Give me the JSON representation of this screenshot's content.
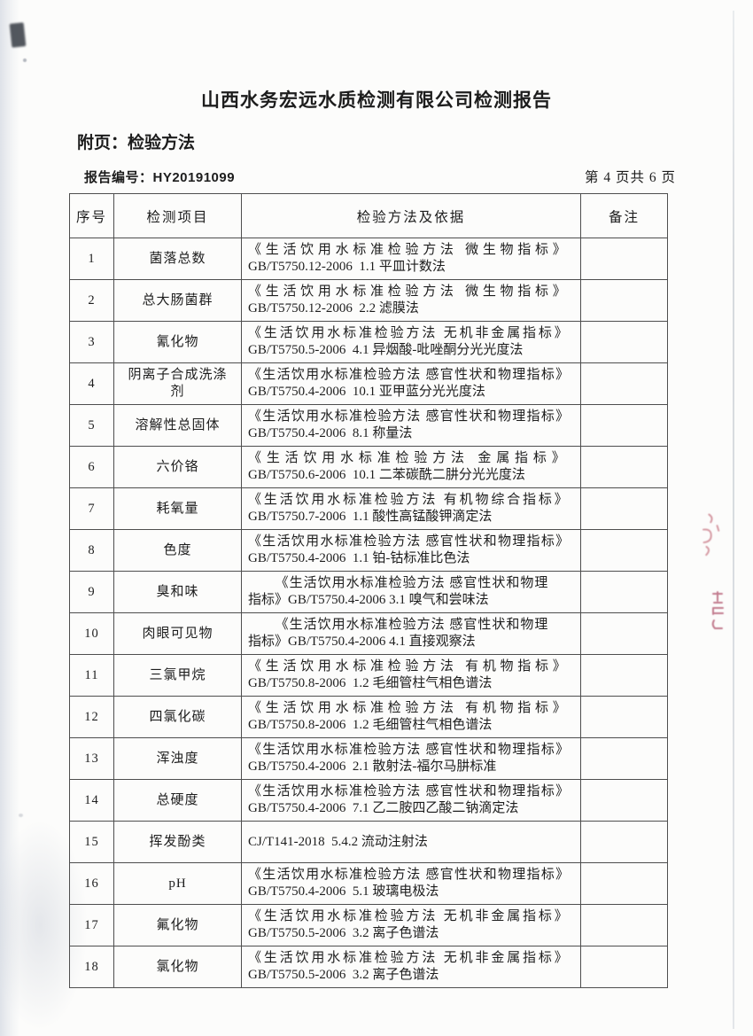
{
  "page": {
    "title": "山西水务宏远水质检测有限公司检测报告",
    "subtitle": "附页：检验方法",
    "report_no": "报告编号：HY20191099",
    "page_indicator": "第 4 页共 6 页"
  },
  "colors": {
    "paper": "#fcfcfb",
    "ink": "#1d1d1d",
    "table_border": "#4e4e4e",
    "stamp": "#b5485a"
  },
  "table": {
    "headers": [
      "序号",
      "检测项目",
      "检验方法及依据",
      "备注"
    ],
    "rows": [
      {
        "num": "1",
        "item": "菌落总数",
        "method_lines": [
          "《生活饮用水标准检验方法 微生物指标》",
          "GB/T5750.12-2006  1.1 平皿计数法"
        ],
        "remark": ""
      },
      {
        "num": "2",
        "item": "总大肠菌群",
        "method_lines": [
          "《生活饮用水标准检验方法 微生物指标》",
          "GB/T5750.12-2006  2.2 滤膜法"
        ],
        "remark": ""
      },
      {
        "num": "3",
        "item": "氰化物",
        "method_lines": [
          "《生活饮用水标准检验方法 无机非金属指标》",
          "GB/T5750.5-2006  4.1 异烟酸-吡唑酮分光光度法"
        ],
        "remark": ""
      },
      {
        "num": "4",
        "item": "阴离子合成洗涤\n剂",
        "method_lines": [
          "《生活饮用水标准检验方法 感官性状和物理指标》",
          "GB/T5750.4-2006  10.1 亚甲蓝分光光度法"
        ],
        "remark": ""
      },
      {
        "num": "5",
        "item": "溶解性总固体",
        "method_lines": [
          "《生活饮用水标准检验方法 感官性状和物理指标》",
          "GB/T5750.4-2006  8.1 称量法"
        ],
        "remark": ""
      },
      {
        "num": "6",
        "item": "六价铬",
        "method_lines": [
          "《生活饮用水标准检验方法 金属指标》",
          "GB/T5750.6-2006  10.1 二苯碳酰二肼分光光度法"
        ],
        "remark": ""
      },
      {
        "num": "7",
        "item": "耗氧量",
        "method_lines": [
          "《生活饮用水标准检验方法 有机物综合指标》",
          "GB/T5750.7-2006  1.1 酸性高锰酸钾滴定法"
        ],
        "remark": ""
      },
      {
        "num": "8",
        "item": "色度",
        "method_lines": [
          "《生活饮用水标准检验方法 感官性状和物理指标》",
          "GB/T5750.4-2006  1.1 铂-钴标准比色法"
        ],
        "remark": ""
      },
      {
        "num": "9",
        "item": "臭和味",
        "method_lines": [
          "《生活饮用水标准检验方法 感官性状和物理",
          "指标》GB/T5750.4-2006 3.1 嗅气和尝味法"
        ],
        "remark": ""
      },
      {
        "num": "10",
        "item": "肉眼可见物",
        "method_lines": [
          "《生活饮用水标准检验方法 感官性状和物理",
          "指标》GB/T5750.4-2006 4.1 直接观察法"
        ],
        "remark": ""
      },
      {
        "num": "11",
        "item": "三氯甲烷",
        "method_lines": [
          "《生活饮用水标准检验方法 有机物指标》",
          "GB/T5750.8-2006  1.2 毛细管柱气相色谱法"
        ],
        "remark": ""
      },
      {
        "num": "12",
        "item": "四氯化碳",
        "method_lines": [
          "《生活饮用水标准检验方法 有机物指标》",
          "GB/T5750.8-2006  1.2 毛细管柱气相色谱法"
        ],
        "remark": ""
      },
      {
        "num": "13",
        "item": "浑浊度",
        "method_lines": [
          "《生活饮用水标准检验方法 感官性状和物理指标》",
          "GB/T5750.4-2006  2.1 散射法-福尔马肼标准"
        ],
        "remark": ""
      },
      {
        "num": "14",
        "item": "总硬度",
        "method_lines": [
          "《生活饮用水标准检验方法 感官性状和物理指标》",
          "GB/T5750.4-2006  7.1 乙二胺四乙酸二钠滴定法"
        ],
        "remark": ""
      },
      {
        "num": "15",
        "item": "挥发酚类",
        "method_lines": [
          "CJ/T141-2018  5.4.2 流动注射法"
        ],
        "remark": ""
      },
      {
        "num": "16",
        "item": "pH",
        "method_lines": [
          "《生活饮用水标准检验方法 感官性状和物理指标》",
          "GB/T5750.4-2006  5.1 玻璃电极法"
        ],
        "remark": ""
      },
      {
        "num": "17",
        "item": "氟化物",
        "method_lines": [
          "《生活饮用水标准检验方法 无机非金属指标》",
          "GB/T5750.5-2006  3.2 离子色谱法"
        ],
        "remark": ""
      },
      {
        "num": "18",
        "item": "氯化物",
        "method_lines": [
          "《生活饮用水标准检验方法 无机非金属指标》",
          "GB/T5750.5-2006  3.2 离子色谱法"
        ],
        "remark": ""
      }
    ]
  }
}
